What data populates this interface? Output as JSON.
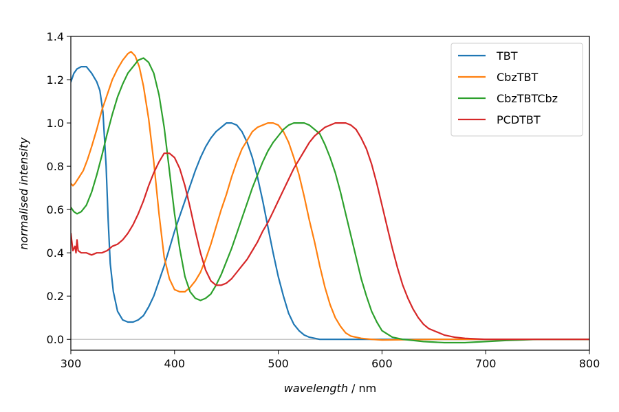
{
  "chart_data": {
    "type": "line",
    "xlabel_italic": "wavelength",
    "xlabel_unit": " / nm",
    "ylabel": "normalised intensity",
    "xlim": [
      300,
      800
    ],
    "ylim": [
      -0.05,
      1.4
    ],
    "xticks": [
      300,
      400,
      500,
      600,
      700,
      800
    ],
    "yticks": [
      0.0,
      0.2,
      0.4,
      0.6,
      0.8,
      1.0,
      1.2,
      1.4
    ],
    "ytick_labels": [
      "0.0",
      "0.2",
      "0.4",
      "0.6",
      "0.8",
      "1.0",
      "1.2",
      "1.4"
    ],
    "zero_line": true,
    "zero_line_color": "#c8c8c8",
    "legend_position": "top-right",
    "series": [
      {
        "name": "TBT",
        "color": "#1f77b4",
        "points": [
          [
            300,
            1.19
          ],
          [
            303,
            1.23
          ],
          [
            306,
            1.25
          ],
          [
            310,
            1.26
          ],
          [
            315,
            1.26
          ],
          [
            320,
            1.23
          ],
          [
            325,
            1.19
          ],
          [
            328,
            1.15
          ],
          [
            331,
            1.05
          ],
          [
            334,
            0.8
          ],
          [
            336,
            0.55
          ],
          [
            338,
            0.35
          ],
          [
            341,
            0.22
          ],
          [
            345,
            0.13
          ],
          [
            350,
            0.09
          ],
          [
            355,
            0.08
          ],
          [
            360,
            0.08
          ],
          [
            365,
            0.09
          ],
          [
            370,
            0.11
          ],
          [
            375,
            0.15
          ],
          [
            380,
            0.2
          ],
          [
            385,
            0.27
          ],
          [
            390,
            0.34
          ],
          [
            395,
            0.42
          ],
          [
            400,
            0.5
          ],
          [
            405,
            0.57
          ],
          [
            410,
            0.64
          ],
          [
            415,
            0.71
          ],
          [
            420,
            0.78
          ],
          [
            425,
            0.84
          ],
          [
            430,
            0.89
          ],
          [
            435,
            0.93
          ],
          [
            440,
            0.96
          ],
          [
            445,
            0.98
          ],
          [
            450,
            1.0
          ],
          [
            455,
            1.0
          ],
          [
            460,
            0.99
          ],
          [
            465,
            0.96
          ],
          [
            470,
            0.91
          ],
          [
            475,
            0.84
          ],
          [
            480,
            0.75
          ],
          [
            485,
            0.64
          ],
          [
            490,
            0.52
          ],
          [
            495,
            0.4
          ],
          [
            500,
            0.29
          ],
          [
            505,
            0.2
          ],
          [
            510,
            0.12
          ],
          [
            515,
            0.07
          ],
          [
            520,
            0.04
          ],
          [
            525,
            0.02
          ],
          [
            530,
            0.01
          ],
          [
            540,
            0.0
          ],
          [
            560,
            0.0
          ],
          [
            600,
            0.0
          ],
          [
            650,
            0.0
          ],
          [
            700,
            0.0
          ],
          [
            750,
            0.0
          ],
          [
            800,
            0.0
          ]
        ]
      },
      {
        "name": "CbzTBT",
        "color": "#ff7f0e",
        "points": [
          [
            300,
            0.72
          ],
          [
            302,
            0.71
          ],
          [
            304,
            0.72
          ],
          [
            308,
            0.75
          ],
          [
            312,
            0.78
          ],
          [
            316,
            0.83
          ],
          [
            320,
            0.89
          ],
          [
            325,
            0.97
          ],
          [
            330,
            1.06
          ],
          [
            335,
            1.13
          ],
          [
            340,
            1.2
          ],
          [
            345,
            1.25
          ],
          [
            350,
            1.29
          ],
          [
            355,
            1.32
          ],
          [
            358,
            1.33
          ],
          [
            362,
            1.31
          ],
          [
            366,
            1.26
          ],
          [
            370,
            1.17
          ],
          [
            375,
            1.02
          ],
          [
            380,
            0.82
          ],
          [
            385,
            0.58
          ],
          [
            390,
            0.38
          ],
          [
            395,
            0.28
          ],
          [
            400,
            0.23
          ],
          [
            405,
            0.22
          ],
          [
            410,
            0.22
          ],
          [
            415,
            0.24
          ],
          [
            420,
            0.27
          ],
          [
            425,
            0.31
          ],
          [
            430,
            0.37
          ],
          [
            435,
            0.44
          ],
          [
            440,
            0.52
          ],
          [
            445,
            0.6
          ],
          [
            450,
            0.67
          ],
          [
            455,
            0.75
          ],
          [
            460,
            0.82
          ],
          [
            465,
            0.88
          ],
          [
            470,
            0.92
          ],
          [
            475,
            0.96
          ],
          [
            480,
            0.98
          ],
          [
            485,
            0.99
          ],
          [
            490,
            1.0
          ],
          [
            495,
            1.0
          ],
          [
            500,
            0.99
          ],
          [
            505,
            0.96
          ],
          [
            510,
            0.91
          ],
          [
            515,
            0.84
          ],
          [
            520,
            0.76
          ],
          [
            525,
            0.66
          ],
          [
            530,
            0.55
          ],
          [
            535,
            0.45
          ],
          [
            540,
            0.34
          ],
          [
            545,
            0.24
          ],
          [
            550,
            0.16
          ],
          [
            555,
            0.1
          ],
          [
            560,
            0.06
          ],
          [
            565,
            0.03
          ],
          [
            570,
            0.015
          ],
          [
            580,
            0.005
          ],
          [
            590,
            0.0
          ],
          [
            600,
            -0.003
          ],
          [
            650,
            0.0
          ],
          [
            700,
            0.0
          ],
          [
            750,
            0.0
          ],
          [
            800,
            0.0
          ]
        ]
      },
      {
        "name": "CbzTBTCbz",
        "color": "#2ca02c",
        "points": [
          [
            300,
            0.61
          ],
          [
            303,
            0.59
          ],
          [
            306,
            0.58
          ],
          [
            310,
            0.59
          ],
          [
            315,
            0.62
          ],
          [
            320,
            0.68
          ],
          [
            325,
            0.76
          ],
          [
            330,
            0.85
          ],
          [
            335,
            0.95
          ],
          [
            340,
            1.04
          ],
          [
            345,
            1.12
          ],
          [
            350,
            1.18
          ],
          [
            355,
            1.23
          ],
          [
            360,
            1.26
          ],
          [
            365,
            1.29
          ],
          [
            370,
            1.3
          ],
          [
            375,
            1.28
          ],
          [
            380,
            1.23
          ],
          [
            385,
            1.13
          ],
          [
            390,
            0.98
          ],
          [
            395,
            0.78
          ],
          [
            400,
            0.58
          ],
          [
            405,
            0.42
          ],
          [
            410,
            0.29
          ],
          [
            415,
            0.22
          ],
          [
            420,
            0.19
          ],
          [
            425,
            0.18
          ],
          [
            430,
            0.19
          ],
          [
            435,
            0.21
          ],
          [
            440,
            0.25
          ],
          [
            445,
            0.3
          ],
          [
            450,
            0.36
          ],
          [
            455,
            0.42
          ],
          [
            460,
            0.49
          ],
          [
            465,
            0.56
          ],
          [
            470,
            0.63
          ],
          [
            475,
            0.7
          ],
          [
            480,
            0.76
          ],
          [
            485,
            0.82
          ],
          [
            490,
            0.87
          ],
          [
            495,
            0.91
          ],
          [
            500,
            0.94
          ],
          [
            505,
            0.97
          ],
          [
            510,
            0.99
          ],
          [
            515,
            1.0
          ],
          [
            520,
            1.0
          ],
          [
            525,
            1.0
          ],
          [
            530,
            0.99
          ],
          [
            535,
            0.97
          ],
          [
            540,
            0.95
          ],
          [
            545,
            0.9
          ],
          [
            550,
            0.84
          ],
          [
            555,
            0.77
          ],
          [
            560,
            0.68
          ],
          [
            565,
            0.58
          ],
          [
            570,
            0.48
          ],
          [
            575,
            0.38
          ],
          [
            580,
            0.28
          ],
          [
            585,
            0.2
          ],
          [
            590,
            0.13
          ],
          [
            595,
            0.08
          ],
          [
            600,
            0.04
          ],
          [
            610,
            0.01
          ],
          [
            620,
            0.0
          ],
          [
            640,
            -0.01
          ],
          [
            660,
            -0.015
          ],
          [
            680,
            -0.015
          ],
          [
            700,
            -0.01
          ],
          [
            720,
            -0.005
          ],
          [
            750,
            0.0
          ],
          [
            800,
            0.0
          ]
        ]
      },
      {
        "name": "PCDTBT",
        "color": "#d62728",
        "points": [
          [
            300,
            0.49
          ],
          [
            302,
            0.41
          ],
          [
            304,
            0.43
          ],
          [
            305,
            0.4
          ],
          [
            306,
            0.46
          ],
          [
            307,
            0.41
          ],
          [
            310,
            0.4
          ],
          [
            315,
            0.4
          ],
          [
            320,
            0.39
          ],
          [
            325,
            0.4
          ],
          [
            330,
            0.4
          ],
          [
            335,
            0.41
          ],
          [
            340,
            0.43
          ],
          [
            345,
            0.44
          ],
          [
            350,
            0.46
          ],
          [
            355,
            0.49
          ],
          [
            360,
            0.53
          ],
          [
            365,
            0.58
          ],
          [
            370,
            0.64
          ],
          [
            375,
            0.71
          ],
          [
            380,
            0.77
          ],
          [
            385,
            0.82
          ],
          [
            390,
            0.86
          ],
          [
            395,
            0.86
          ],
          [
            400,
            0.84
          ],
          [
            405,
            0.79
          ],
          [
            410,
            0.71
          ],
          [
            415,
            0.61
          ],
          [
            420,
            0.5
          ],
          [
            425,
            0.4
          ],
          [
            430,
            0.32
          ],
          [
            435,
            0.27
          ],
          [
            440,
            0.25
          ],
          [
            445,
            0.25
          ],
          [
            450,
            0.26
          ],
          [
            455,
            0.28
          ],
          [
            460,
            0.31
          ],
          [
            465,
            0.34
          ],
          [
            470,
            0.37
          ],
          [
            475,
            0.41
          ],
          [
            480,
            0.45
          ],
          [
            485,
            0.5
          ],
          [
            490,
            0.54
          ],
          [
            495,
            0.59
          ],
          [
            500,
            0.64
          ],
          [
            505,
            0.69
          ],
          [
            510,
            0.74
          ],
          [
            515,
            0.79
          ],
          [
            520,
            0.83
          ],
          [
            525,
            0.87
          ],
          [
            530,
            0.91
          ],
          [
            535,
            0.94
          ],
          [
            540,
            0.96
          ],
          [
            545,
            0.98
          ],
          [
            550,
            0.99
          ],
          [
            555,
            1.0
          ],
          [
            560,
            1.0
          ],
          [
            565,
            1.0
          ],
          [
            570,
            0.99
          ],
          [
            575,
            0.97
          ],
          [
            580,
            0.93
          ],
          [
            585,
            0.88
          ],
          [
            590,
            0.81
          ],
          [
            595,
            0.72
          ],
          [
            600,
            0.62
          ],
          [
            605,
            0.52
          ],
          [
            610,
            0.42
          ],
          [
            615,
            0.33
          ],
          [
            620,
            0.25
          ],
          [
            625,
            0.19
          ],
          [
            630,
            0.14
          ],
          [
            635,
            0.1
          ],
          [
            640,
            0.07
          ],
          [
            645,
            0.05
          ],
          [
            650,
            0.04
          ],
          [
            660,
            0.02
          ],
          [
            670,
            0.01
          ],
          [
            680,
            0.005
          ],
          [
            700,
            0.0
          ],
          [
            720,
            0.0
          ],
          [
            750,
            0.0
          ],
          [
            800,
            0.0
          ]
        ]
      }
    ]
  }
}
